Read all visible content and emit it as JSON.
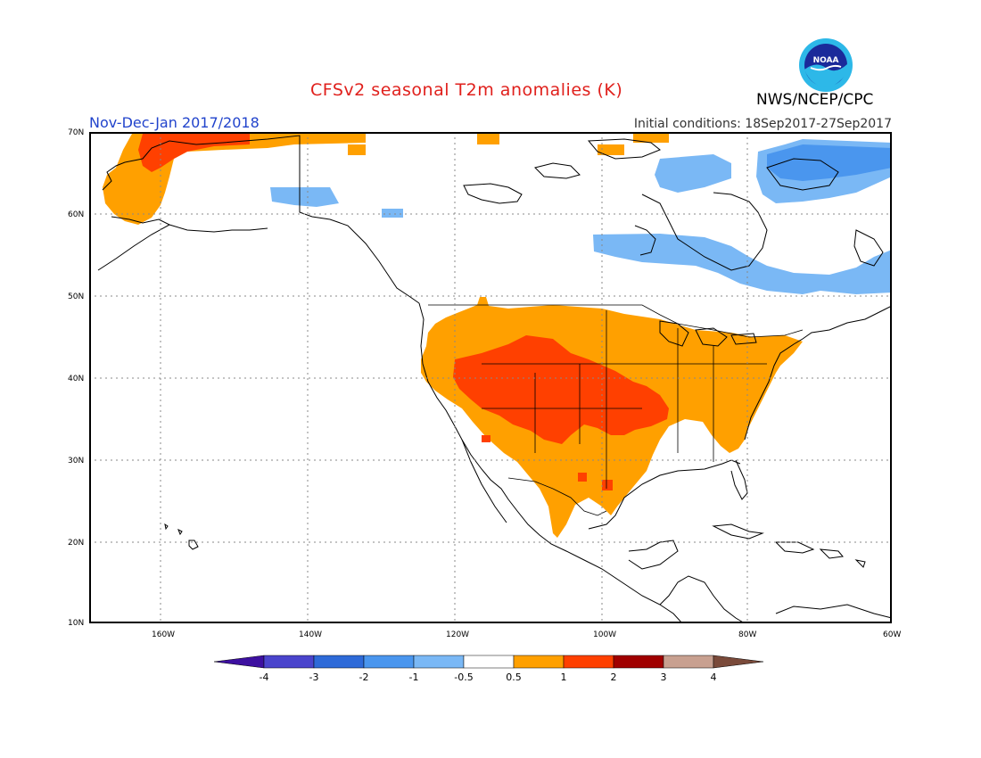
{
  "header": {
    "title": "CFSv2 seasonal T2m anomalies (K)",
    "period": "Nov-Dec-Jan 2017/2018",
    "initial_conditions": "Initial conditions: 18Sep2017-27Sep2017",
    "agency": "NWS/NCEP/CPC",
    "logo_text": "NOAA"
  },
  "axes": {
    "lat_labels": [
      "70N",
      "60N",
      "50N",
      "40N",
      "30N",
      "20N",
      "10N"
    ],
    "lon_labels": [
      "160W",
      "140W",
      "120W",
      "100W",
      "80W",
      "60W"
    ]
  },
  "colorbar": {
    "labels": [
      "-4",
      "-3",
      "-2",
      "-1",
      "-0.5",
      "0.5",
      "1",
      "2",
      "3",
      "4"
    ],
    "colors": [
      "#3d10a0",
      "#4a44cc",
      "#2e6ad8",
      "#4a96ee",
      "#7ab8f5",
      "#ffffff",
      "#ffa000",
      "#ff4000",
      "#a00000",
      "#c8a090",
      "#7a4a3a"
    ]
  },
  "colors": {
    "warm1": "#ffa000",
    "warm2": "#ff4000",
    "cool1": "#7ab8f5",
    "cool2": "#4a96ee"
  }
}
